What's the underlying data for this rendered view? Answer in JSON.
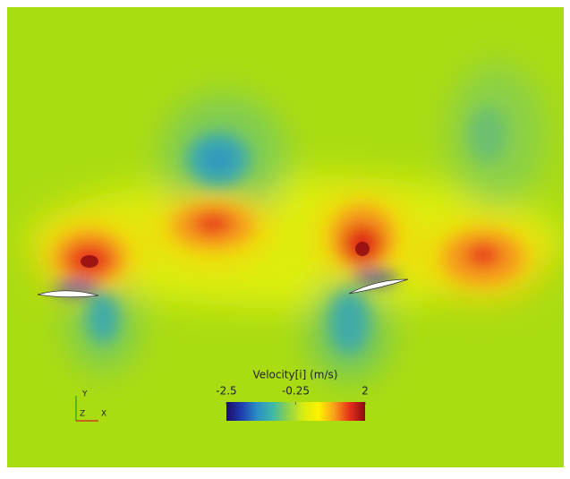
{
  "chart_data": {
    "type": "contour",
    "colorbar_title": "Velocity[i] (m/s)",
    "clim": [
      -2.5,
      2
    ],
    "cticks": [
      -2.5,
      -0.25,
      2
    ],
    "colormap": [
      "#1b0c6b",
      "#1f3fb0",
      "#2a8fc4",
      "#3fb7a8",
      "#8fd24a",
      "#d9ec10",
      "#fff200",
      "#f9a01b",
      "#e8301a",
      "#8a0a10"
    ],
    "axes_labels": {
      "y": "Y",
      "z": "Z",
      "x": "X"
    }
  }
}
